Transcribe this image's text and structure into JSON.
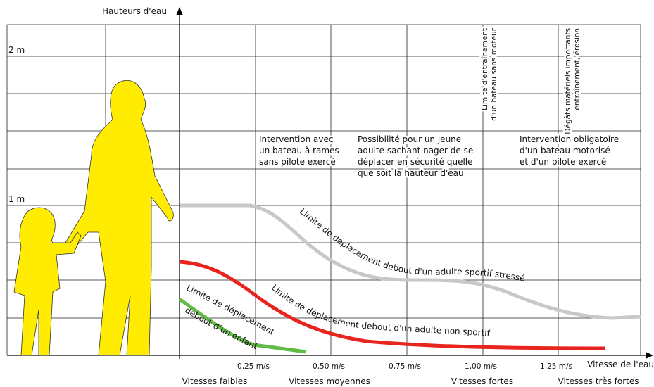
{
  "axis": {
    "y_title": "Hauteurs d'eau",
    "y_labels": [
      "2 m",
      "1 m"
    ],
    "x_title": "Vitesse de l'eau",
    "x_labels": [
      "0,25 m/s",
      "0,50 m/s",
      "0,75 m/s",
      "1,00 m/s",
      "1,25 m/s"
    ]
  },
  "speed_classes": [
    "Vitesses faibles",
    "Vitesses moyennes",
    "Vitesses fortes",
    "Vitesses très fortes"
  ],
  "zones": [
    {
      "lines": [
        "Intervention avec",
        "un bateau à rames",
        "sans pilote exercé"
      ]
    },
    {
      "lines": [
        "Possibilité pour un jeune",
        "adulte sachant nager de se",
        "déplacer en sécurité quelle",
        "que soit la hauteur d'eau"
      ]
    },
    {
      "lines": [
        "Intervention obligatoire",
        "d'un bateau motorisé",
        "et d'un pilote exercé"
      ]
    }
  ],
  "vertical_notes": [
    {
      "lines": [
        "Limite d'entraînement",
        "d'un bateau sans moteur"
      ]
    },
    {
      "lines": [
        "Dégâts matériels importants",
        "entraînement, érosion"
      ]
    }
  ],
  "curves": [
    {
      "label": "Limite de déplacement debout d'un adulte sportif stressé"
    },
    {
      "label": "Limite de déplacement debout d'un adulte non sportif"
    },
    {
      "label_lines": [
        "Limite de déplacement",
        "debout d'un enfant"
      ]
    }
  ]
}
